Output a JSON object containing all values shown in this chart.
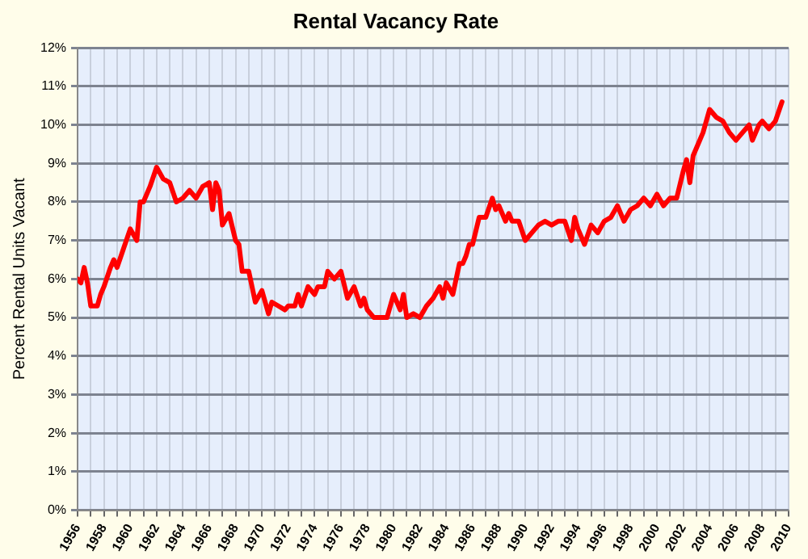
{
  "chart_data": {
    "type": "line",
    "title": "Rental Vacancy Rate",
    "ylabel": "Percent Rental Units Vacant",
    "x": [
      1956,
      1956.25,
      1956.5,
      1956.75,
      1957,
      1957.5,
      1957.75,
      1958,
      1958.5,
      1958.75,
      1959,
      1959.5,
      1960,
      1960.5,
      1960.75,
      1961,
      1961.5,
      1962,
      1962.5,
      1963,
      1963.5,
      1964,
      1964.5,
      1965,
      1965.5,
      1966,
      1966.25,
      1966.5,
      1966.75,
      1967,
      1967.5,
      1968,
      1968.25,
      1968.5,
      1969,
      1969.5,
      1970,
      1970.5,
      1970.75,
      1971.25,
      1971.75,
      1972,
      1972.5,
      1972.75,
      1973,
      1973.5,
      1974,
      1974.25,
      1974.75,
      1975,
      1975.5,
      1976,
      1976.5,
      1977,
      1977.5,
      1977.75,
      1978,
      1978.5,
      1979,
      1979.5,
      1980,
      1980.5,
      1980.75,
      1981,
      1981.5,
      1982,
      1982.5,
      1983,
      1983.5,
      1983.75,
      1984,
      1984.5,
      1985,
      1985.25,
      1985.5,
      1985.75,
      1986,
      1986.5,
      1987,
      1987.5,
      1987.75,
      1988,
      1988.5,
      1988.75,
      1989,
      1989.5,
      1990,
      1990.5,
      1991,
      1991.5,
      1992,
      1992.5,
      1993,
      1993.5,
      1993.75,
      1994,
      1994.5,
      1995,
      1995.5,
      1996,
      1996.5,
      1997,
      1997.5,
      1998,
      1998.5,
      1999,
      1999.5,
      2000,
      2000.5,
      2001,
      2001.5,
      2002,
      2002.25,
      2002.5,
      2002.75,
      2003,
      2003.5,
      2004,
      2004.5,
      2005,
      2005.5,
      2006,
      2006.5,
      2007,
      2007.25,
      2007.5,
      2007.75,
      2008,
      2008.5,
      2009,
      2009.5
    ],
    "series": [
      {
        "color": "#ff0000",
        "values": [
          6.0,
          5.9,
          6.3,
          5.9,
          5.3,
          5.3,
          5.6,
          5.8,
          6.3,
          6.5,
          6.3,
          6.8,
          7.3,
          7.0,
          8.0,
          8.0,
          8.4,
          8.9,
          8.6,
          8.5,
          8.0,
          8.1,
          8.3,
          8.1,
          8.4,
          8.5,
          7.8,
          8.5,
          8.3,
          7.4,
          7.7,
          7.0,
          6.9,
          6.2,
          6.2,
          5.4,
          5.7,
          5.1,
          5.4,
          5.3,
          5.2,
          5.3,
          5.3,
          5.6,
          5.3,
          5.8,
          5.6,
          5.8,
          5.8,
          6.2,
          6.0,
          6.2,
          5.5,
          5.8,
          5.3,
          5.5,
          5.2,
          5.0,
          5.0,
          5.0,
          5.6,
          5.2,
          5.6,
          5.0,
          5.1,
          5.0,
          5.3,
          5.5,
          5.8,
          5.5,
          5.9,
          5.6,
          6.4,
          6.4,
          6.6,
          6.9,
          6.9,
          7.6,
          7.6,
          8.1,
          7.8,
          7.9,
          7.5,
          7.7,
          7.5,
          7.5,
          7.0,
          7.2,
          7.4,
          7.5,
          7.4,
          7.5,
          7.5,
          7.0,
          7.6,
          7.3,
          6.9,
          7.4,
          7.2,
          7.5,
          7.6,
          7.9,
          7.5,
          7.8,
          7.9,
          8.1,
          7.9,
          8.2,
          7.9,
          8.1,
          8.1,
          8.8,
          9.1,
          8.5,
          9.2,
          9.4,
          9.8,
          10.4,
          10.2,
          10.1,
          9.8,
          9.6,
          9.8,
          10.0,
          9.6,
          9.8,
          10.0,
          10.1,
          9.9,
          10.1,
          10.6
        ]
      }
    ],
    "xlim": [
      1956,
      2010
    ],
    "xticks": [
      1956,
      {
        "value": 1957,
        "label": null
      },
      1958,
      {
        "value": 1959,
        "label": null
      },
      1960,
      {
        "value": 1961,
        "label": null
      },
      1962,
      {
        "value": 1963,
        "label": null
      },
      1964,
      {
        "value": 1965,
        "label": null
      },
      1966,
      {
        "value": 1967,
        "label": null
      },
      1968,
      {
        "value": 1969,
        "label": null
      },
      1970,
      {
        "value": 1971,
        "label": null
      },
      1972,
      {
        "value": 1973,
        "label": null
      },
      1974,
      {
        "value": 1975,
        "label": null
      },
      1976,
      {
        "value": 1977,
        "label": null
      },
      1978,
      {
        "value": 1979,
        "label": null
      },
      1980,
      {
        "value": 1981,
        "label": null
      },
      1982,
      {
        "value": 1983,
        "label": null
      },
      1984,
      {
        "value": 1985,
        "label": null
      },
      1986,
      {
        "value": 1987,
        "label": null
      },
      1988,
      {
        "value": 1989,
        "label": null
      },
      1990,
      {
        "value": 1991,
        "label": null
      },
      1992,
      {
        "value": 1993,
        "label": null
      },
      1994,
      {
        "value": 1995,
        "label": null
      },
      1996,
      {
        "value": 1997,
        "label": null
      },
      1998,
      {
        "value": 1999,
        "label": null
      },
      2000,
      {
        "value": 2001,
        "label": null
      },
      2002,
      {
        "value": 2003,
        "label": null
      },
      2004,
      {
        "value": 2005,
        "label": null
      },
      2006,
      {
        "value": 2007,
        "label": null
      },
      2008,
      {
        "value": 2009,
        "label": null
      },
      2010
    ],
    "ylim": [
      0,
      12
    ],
    "yticks": [
      {
        "value": 0,
        "label": "0%"
      },
      {
        "value": 1,
        "label": "1%"
      },
      {
        "value": 2,
        "label": "2%"
      },
      {
        "value": 3,
        "label": "3%"
      },
      {
        "value": 4,
        "label": "4%"
      },
      {
        "value": 5,
        "label": "5%"
      },
      {
        "value": 6,
        "label": "6%"
      },
      {
        "value": 7,
        "label": "7%"
      },
      {
        "value": 8,
        "label": "8%"
      },
      {
        "value": 9,
        "label": "9%"
      },
      {
        "value": 10,
        "label": "10%"
      },
      {
        "value": 11,
        "label": "11%"
      },
      {
        "value": 12,
        "label": "12%"
      }
    ],
    "grid": true,
    "legend": false,
    "marker": "none",
    "line_style": "solid"
  }
}
